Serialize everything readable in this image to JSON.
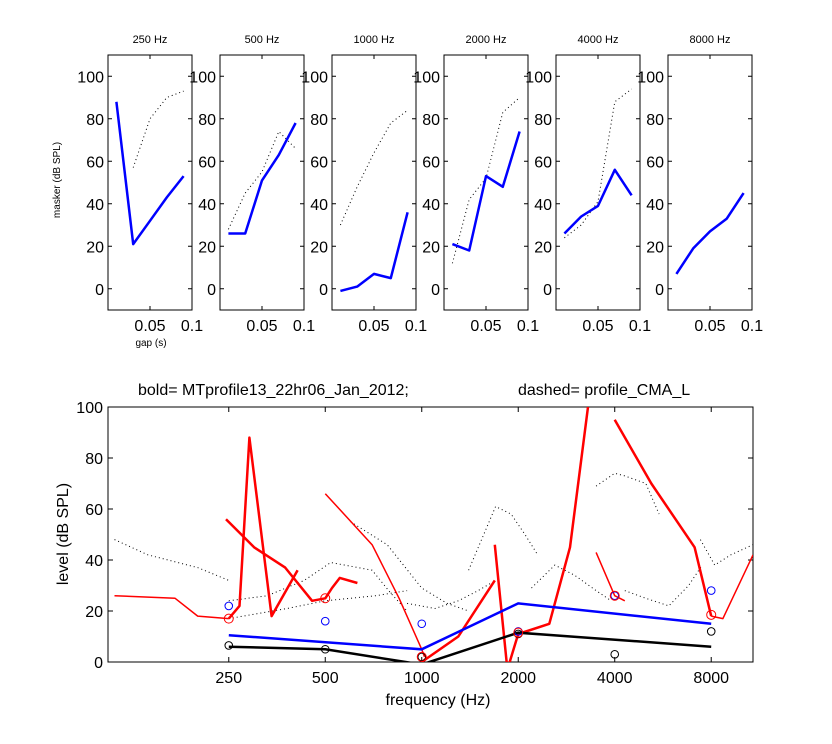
{
  "chart_data": [
    {
      "type": "line",
      "role": "small-multiples",
      "ylabel": "masker (dB SPL)",
      "xlabel": "gap (s)",
      "ylim": [
        -10,
        110
      ],
      "xlim": [
        0,
        0.1
      ],
      "yticks": [
        0,
        20,
        40,
        60,
        80,
        100
      ],
      "xticks": [
        0.05,
        0.1
      ],
      "xtick_labels": [
        "0.05",
        "0.1"
      ],
      "panels": [
        {
          "title": "250 Hz",
          "bold": {
            "x": [
              0.01,
              0.03,
              0.05,
              0.07,
              0.09
            ],
            "y": [
              88,
              21,
              32,
              43,
              53
            ]
          },
          "dotted": {
            "x": [
              0.01,
              0.03,
              0.05,
              0.07,
              0.09
            ],
            "y": [
              null,
              57,
              80,
              90,
              93
            ]
          }
        },
        {
          "title": "500 Hz",
          "bold": {
            "x": [
              0.01,
              0.03,
              0.05,
              0.07,
              0.09
            ],
            "y": [
              26,
              26,
              51,
              63,
              78
            ]
          },
          "dotted": {
            "x": [
              0.01,
              0.03,
              0.05,
              0.07,
              0.09
            ],
            "y": [
              28,
              45,
              55,
              74,
              66
            ]
          }
        },
        {
          "title": "1000 Hz",
          "bold": {
            "x": [
              0.01,
              0.03,
              0.05,
              0.07,
              0.09
            ],
            "y": [
              -1,
              1,
              7,
              5,
              36
            ]
          },
          "dotted": {
            "x": [
              0.01,
              0.03,
              0.05,
              0.07,
              0.09
            ],
            "y": [
              30,
              48,
              64,
              78,
              84
            ]
          }
        },
        {
          "title": "2000 Hz",
          "bold": {
            "x": [
              0.01,
              0.03,
              0.05,
              0.07,
              0.09
            ],
            "y": [
              21,
              18,
              53,
              48,
              74
            ]
          },
          "dotted": {
            "x": [
              0.01,
              0.03,
              0.05,
              0.07,
              0.09
            ],
            "y": [
              12,
              42,
              52,
              83,
              90
            ]
          }
        },
        {
          "title": "4000 Hz",
          "bold": {
            "x": [
              0.01,
              0.03,
              0.05,
              0.07,
              0.09
            ],
            "y": [
              26,
              34,
              39,
              56,
              44
            ]
          },
          "dotted": {
            "x": [
              0.01,
              0.03,
              0.05,
              0.07,
              0.09
            ],
            "y": [
              24,
              30,
              41,
              88,
              94
            ]
          }
        },
        {
          "title": "8000 Hz",
          "bold": {
            "x": [
              0.01,
              0.03,
              0.05,
              0.07,
              0.09
            ],
            "y": [
              7,
              19,
              27,
              33,
              45
            ]
          },
          "dotted": {
            "x": [],
            "y": []
          }
        }
      ]
    },
    {
      "type": "line",
      "role": "profile",
      "title_left": "bold= MTprofile13_22hr06_Jan_2012;",
      "title_right": "dashed=  profile_CMA_L",
      "xlabel": "frequency (Hz)",
      "ylabel": "level (dB SPL)",
      "xscale": "log",
      "xlim": [
        105,
        10800
      ],
      "ylim": [
        0,
        100
      ],
      "xticks": [
        250,
        500,
        1000,
        2000,
        4000,
        8000
      ],
      "xtick_labels": [
        "250",
        "500",
        "1000",
        "2000",
        "4000",
        "8000"
      ],
      "yticks": [
        0,
        20,
        40,
        60,
        80,
        100
      ],
      "grid": false,
      "blue_line": {
        "x": [
          250,
          1000,
          2000,
          8000
        ],
        "y": [
          10.5,
          5,
          23,
          15
        ]
      },
      "black_line": {
        "x": [
          250,
          500,
          1000,
          2000,
          8000
        ],
        "y": [
          6,
          5,
          -1,
          11.5,
          6
        ]
      },
      "red_thick_segments": [
        {
          "x": [
            250,
            270,
            290,
            340,
            410
          ],
          "y": [
            17,
            22,
            88,
            18,
            36
          ]
        },
        {
          "x": [
            245,
            300,
            375,
            455,
            500,
            525,
            555,
            630
          ],
          "y": [
            56,
            45,
            37,
            24,
            25,
            29,
            33,
            31
          ]
        },
        {
          "x": [
            1000,
            1300,
            1690
          ],
          "y": [
            0,
            10,
            32
          ]
        },
        {
          "x": [
            1690,
            1850,
            2000
          ],
          "y": [
            46,
            -3,
            11
          ]
        },
        {
          "x": [
            2000,
            2500,
            2900,
            3300
          ],
          "y": [
            11,
            15,
            45,
            100
          ]
        },
        {
          "x": [
            4000,
            5200,
            7100,
            8000
          ],
          "y": [
            95,
            70,
            45,
            18
          ]
        }
      ],
      "red_thin_segments": [
        {
          "x": [
            110,
            170,
            200,
            250
          ],
          "y": [
            26,
            25,
            18,
            17
          ]
        },
        {
          "x": [
            500,
            700,
            850,
            1000,
            1020
          ],
          "y": [
            66,
            46,
            25,
            5,
            2
          ]
        },
        {
          "x": [
            3500,
            4000,
            4300
          ],
          "y": [
            43,
            26,
            24
          ]
        },
        {
          "x": [
            8000,
            8700,
            10800
          ],
          "y": [
            18,
            17,
            42
          ]
        }
      ],
      "dotted_segments": [
        {
          "x": [
            110,
            140,
            200,
            250
          ],
          "y": [
            48,
            42,
            37,
            32
          ]
        },
        {
          "x": [
            250,
            330,
            430,
            520,
            700,
            800,
            900
          ],
          "y": [
            24,
            26,
            32,
            39,
            36,
            27,
            20
          ]
        },
        {
          "x": [
            250,
            380,
            500,
            720,
            900
          ],
          "y": [
            17,
            21,
            24,
            26,
            28
          ]
        },
        {
          "x": [
            600,
            780,
            1000,
            1200,
            1400
          ],
          "y": [
            55,
            46,
            29,
            23,
            20
          ]
        },
        {
          "x": [
            900,
            1100,
            1300,
            1500,
            1700
          ],
          "y": [
            23,
            21,
            24,
            28,
            32
          ]
        },
        {
          "x": [
            1400,
            1700,
            1900,
            2100,
            2300
          ],
          "y": [
            36,
            61,
            58,
            50,
            42
          ]
        },
        {
          "x": [
            2200,
            2600,
            3000,
            3500,
            3900
          ],
          "y": [
            29,
            38,
            34,
            28,
            24
          ]
        },
        {
          "x": [
            3500,
            4000,
            4300,
            5000,
            5500
          ],
          "y": [
            69,
            74,
            73,
            70,
            58
          ]
        },
        {
          "x": [
            4300,
            5000,
            5900,
            6800,
            7500
          ],
          "y": [
            28,
            25,
            22,
            30,
            38
          ]
        },
        {
          "x": [
            7400,
            8200,
            9200,
            10800
          ],
          "y": [
            48,
            38,
            42,
            46
          ]
        }
      ],
      "blue_circles": {
        "x": [
          250,
          500,
          1000,
          2000,
          4000,
          8000
        ],
        "y": [
          22,
          16,
          15,
          12,
          26,
          28
        ]
      },
      "black_circles": {
        "x": [
          250,
          500,
          1000,
          2000,
          4000,
          8000
        ],
        "y": [
          6.5,
          5,
          2,
          11,
          3,
          12
        ]
      },
      "red_circles": {
        "x": [
          250,
          500,
          1000,
          2000,
          4000,
          8000
        ],
        "y": [
          17,
          25,
          2,
          11.5,
          26,
          18.5
        ]
      }
    }
  ],
  "colors": {
    "blue": "#0000ff",
    "red": "#ff0000",
    "black": "#000000",
    "dotted": "#000000"
  }
}
